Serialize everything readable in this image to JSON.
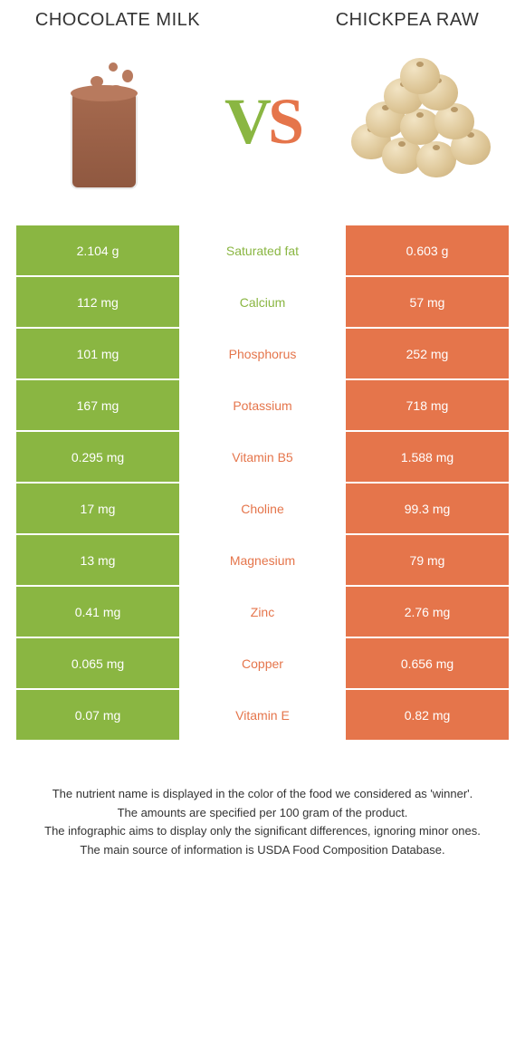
{
  "leftFood": {
    "title": "CHOCOLATE MILK"
  },
  "rightFood": {
    "title": "CHICKPEA RAW"
  },
  "colors": {
    "left": "#8ab642",
    "right": "#e5754b",
    "rowGap": "#ffffff",
    "text": "#ffffff"
  },
  "table": {
    "rows": [
      {
        "left": "2.104 g",
        "label": "Saturated fat",
        "right": "0.603 g",
        "winner": "left"
      },
      {
        "left": "112 mg",
        "label": "Calcium",
        "right": "57 mg",
        "winner": "left"
      },
      {
        "left": "101 mg",
        "label": "Phosphorus",
        "right": "252 mg",
        "winner": "right"
      },
      {
        "left": "167 mg",
        "label": "Potassium",
        "right": "718 mg",
        "winner": "right"
      },
      {
        "left": "0.295 mg",
        "label": "Vitamin B5",
        "right": "1.588 mg",
        "winner": "right"
      },
      {
        "left": "17 mg",
        "label": "Choline",
        "right": "99.3 mg",
        "winner": "right"
      },
      {
        "left": "13 mg",
        "label": "Magnesium",
        "right": "79 mg",
        "winner": "right"
      },
      {
        "left": "0.41 mg",
        "label": "Zinc",
        "right": "2.76 mg",
        "winner": "right"
      },
      {
        "left": "0.065 mg",
        "label": "Copper",
        "right": "0.656 mg",
        "winner": "right"
      },
      {
        "left": "0.07 mg",
        "label": "Vitamin E",
        "right": "0.82 mg",
        "winner": "right"
      }
    ]
  },
  "footer": {
    "line1": "The nutrient name is displayed in the color of the food we considered as 'winner'.",
    "line2": "The amounts are specified per 100 gram of the product.",
    "line3": "The infographic aims to display only the significant differences, ignoring minor ones.",
    "line4": "The main source of information is USDA Food Composition Database."
  }
}
